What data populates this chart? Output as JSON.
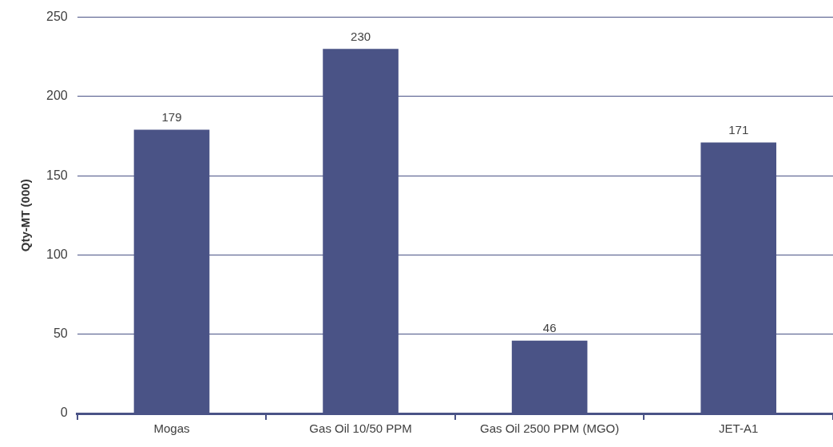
{
  "chart_data": {
    "type": "bar",
    "ylabel": "Qty-MT (000)",
    "categories": [
      "Mogas",
      "Gas Oil 10/50 PPM",
      "Gas Oil 2500 PPM (MGO)",
      "JET-A1"
    ],
    "values": [
      179,
      230,
      46,
      171
    ],
    "color": "#4a5386",
    "ylim": [
      0,
      250
    ],
    "yticks": [
      0,
      50,
      100,
      150,
      200,
      250
    ],
    "grid": "y",
    "data_labels": true
  }
}
